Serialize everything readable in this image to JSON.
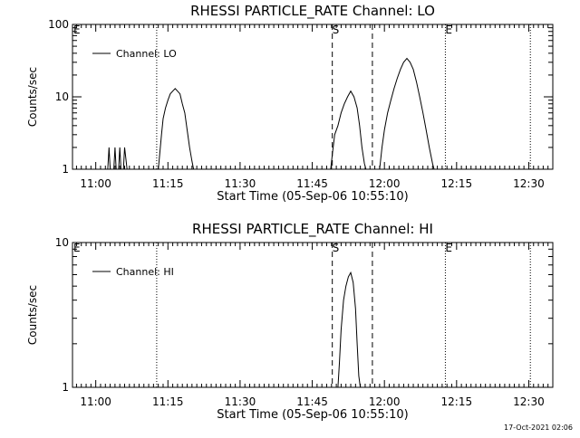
{
  "chart_data": [
    {
      "type": "line",
      "title": "RHESSI PARTICLE_RATE Channel: LO",
      "xlabel": "Start Time (05-Sep-06 10:55:10)",
      "ylabel": "Counts/sec",
      "yscale": "log",
      "ylim": [
        1,
        100
      ],
      "xlim": [
        "10:55:10",
        "12:35:00"
      ],
      "x_ticks": [
        "11:00",
        "11:15",
        "11:30",
        "11:45",
        "12:00",
        "12:15",
        "12:30"
      ],
      "y_ticks": [
        "1",
        "10",
        "100"
      ],
      "legend": "Channel: LO",
      "markers": [
        {
          "label": "E",
          "time": "10:55:10",
          "style": "dotted"
        },
        {
          "label": "",
          "time": "11:12:40",
          "style": "dotted"
        },
        {
          "label": "S",
          "time": "11:49:10",
          "style": "dashed"
        },
        {
          "label": "",
          "time": "11:57:30",
          "style": "dashed"
        },
        {
          "label": "E",
          "time": "12:12:40",
          "style": "dotted"
        },
        {
          "label": "",
          "time": "12:30:20",
          "style": "dotted"
        }
      ],
      "series": [
        {
          "name": "Channel: LO",
          "segments": [
            [
              [
                "11:02:30",
                1
              ],
              [
                "11:02:45",
                2
              ],
              [
                "11:03:00",
                1
              ],
              [
                "11:03:45",
                1
              ],
              [
                "11:04:00",
                2
              ],
              [
                "11:04:15",
                1
              ],
              [
                "11:04:45",
                1
              ],
              [
                "11:05:00",
                2
              ],
              [
                "11:05:15",
                1
              ],
              [
                "11:05:45",
                1
              ],
              [
                "11:06:00",
                2
              ],
              [
                "11:06:30",
                1
              ]
            ],
            [
              [
                "11:13:00",
                1
              ],
              [
                "11:13:15",
                1.5
              ],
              [
                "11:13:40",
                3
              ],
              [
                "11:14:00",
                5
              ],
              [
                "11:14:30",
                7
              ],
              [
                "11:15:00",
                9
              ],
              [
                "11:15:30",
                11
              ],
              [
                "11:16:00",
                12
              ],
              [
                "11:16:30",
                13
              ],
              [
                "11:17:00",
                12
              ],
              [
                "11:17:30",
                11
              ],
              [
                "11:18:00",
                8
              ],
              [
                "11:18:30",
                6
              ],
              [
                "11:19:00",
                3.5
              ],
              [
                "11:19:30",
                2
              ],
              [
                "11:20:00",
                1.3
              ],
              [
                "11:20:20",
                1
              ]
            ],
            [
              [
                "11:48:50",
                1
              ],
              [
                "11:49:10",
                1.6
              ],
              [
                "11:49:40",
                3
              ],
              [
                "11:50:20",
                4
              ],
              [
                "11:51:00",
                6
              ],
              [
                "11:51:40",
                8
              ],
              [
                "11:52:20",
                10
              ],
              [
                "11:53:00",
                12
              ],
              [
                "11:53:40",
                10
              ],
              [
                "11:54:20",
                7
              ],
              [
                "11:54:50",
                4
              ],
              [
                "11:55:20",
                2
              ],
              [
                "11:55:50",
                1.2
              ],
              [
                "11:56:10",
                1
              ]
            ],
            [
              [
                "11:59:00",
                1
              ],
              [
                "11:59:30",
                2
              ],
              [
                "12:00:00",
                3.5
              ],
              [
                "12:00:40",
                6
              ],
              [
                "12:01:20",
                9
              ],
              [
                "12:02:00",
                13
              ],
              [
                "12:02:40",
                18
              ],
              [
                "12:03:20",
                24
              ],
              [
                "12:04:00",
                30
              ],
              [
                "12:04:40",
                34
              ],
              [
                "12:05:20",
                30
              ],
              [
                "12:06:00",
                24
              ],
              [
                "12:06:40",
                16
              ],
              [
                "12:07:20",
                10
              ],
              [
                "12:08:00",
                6
              ],
              [
                "12:08:40",
                3.5
              ],
              [
                "12:09:20",
                2
              ],
              [
                "12:10:00",
                1.2
              ],
              [
                "12:10:20",
                1
              ]
            ]
          ]
        }
      ]
    },
    {
      "type": "line",
      "title": "RHESSI PARTICLE_RATE Channel: HI",
      "xlabel": "Start Time (05-Sep-06 10:55:10)",
      "ylabel": "Counts/sec",
      "yscale": "log",
      "ylim": [
        1,
        10
      ],
      "xlim": [
        "10:55:10",
        "12:35:00"
      ],
      "x_ticks": [
        "11:00",
        "11:15",
        "11:30",
        "11:45",
        "12:00",
        "12:15",
        "12:30"
      ],
      "y_ticks": [
        "1",
        "10"
      ],
      "legend": "Channel: HI",
      "markers": [
        {
          "label": "E",
          "time": "10:55:10",
          "style": "dotted"
        },
        {
          "label": "",
          "time": "11:12:40",
          "style": "dotted"
        },
        {
          "label": "S",
          "time": "11:49:10",
          "style": "dashed"
        },
        {
          "label": "",
          "time": "11:57:30",
          "style": "dashed"
        },
        {
          "label": "E",
          "time": "12:12:40",
          "style": "dotted"
        },
        {
          "label": "",
          "time": "12:30:20",
          "style": "dotted"
        }
      ],
      "series": [
        {
          "name": "Channel: HI",
          "segments": [
            [
              [
                "11:50:20",
                1
              ],
              [
                "11:50:40",
                1.5
              ],
              [
                "11:51:00",
                2.5
              ],
              [
                "11:51:30",
                4
              ],
              [
                "11:52:00",
                5
              ],
              [
                "11:52:30",
                5.8
              ],
              [
                "11:53:00",
                6.2
              ],
              [
                "11:53:30",
                5.3
              ],
              [
                "11:54:00",
                3.5
              ],
              [
                "11:54:20",
                2
              ],
              [
                "11:54:40",
                1.2
              ],
              [
                "11:55:00",
                1
              ]
            ]
          ]
        }
      ]
    }
  ],
  "footer": "17-Oct-2021 02:06"
}
